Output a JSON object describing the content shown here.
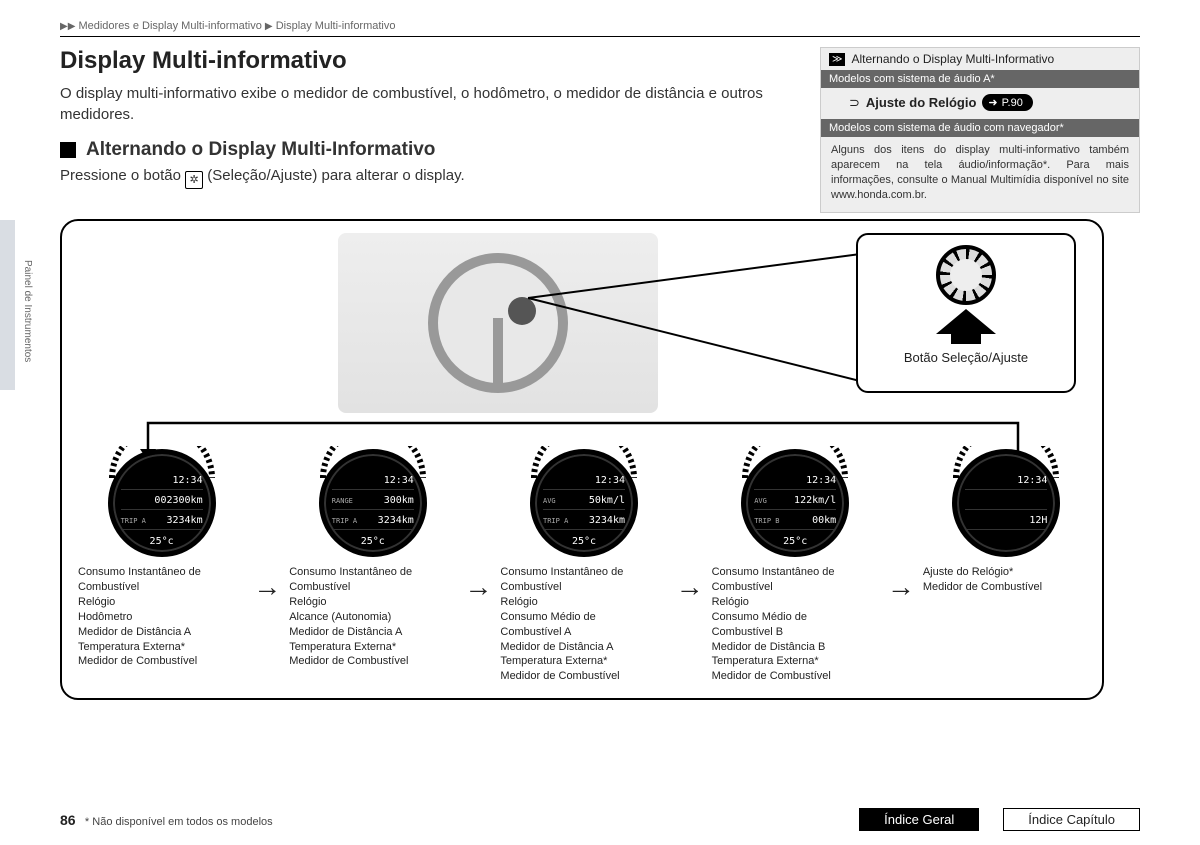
{
  "breadcrumb": {
    "level1": "Medidores e Display Multi-informativo",
    "level2": "Display Multi-informativo"
  },
  "title": "Display Multi-informativo",
  "intro": "O display multi-informativo exibe o medidor de combustível, o hodômetro, o medidor de distância e outros medidores.",
  "subheading": "Alternando o Display Multi-Informativo",
  "instruction_pre": "Pressione o botão ",
  "instruction_post": " (Seleção/Ajuste) para alterar o display.",
  "vertical_tab": "Painel de Instrumentos",
  "sidebar": {
    "header_text": "Alternando o Display Multi-Informativo",
    "bar1": "Modelos com sistema de áudio A*",
    "link_label": "Ajuste do Relógio",
    "link_page": "P.90",
    "bar2": "Modelos com sistema de áudio com navegador*",
    "note": "Alguns dos itens do display multi-informativo também aparecem na tela áudio/informação*. Para mais informações, consulte o Manual Multimídia disponível no site www.honda.com.br."
  },
  "callout_label": "Botão Seleção/Ajuste",
  "gauges": [
    {
      "time": "12:34",
      "row2_left": "",
      "row2_right": "002300km",
      "row3_left": "TRIP A",
      "row3_right": "3234km",
      "temp": "25°c",
      "desc": [
        "Consumo Instantâneo de",
        "Combustível",
        "Relógio",
        "Hodômetro",
        "Medidor de Distância A",
        "Temperatura Externa*",
        "Medidor de Combustível"
      ]
    },
    {
      "time": "12:34",
      "row2_left": "RANGE",
      "row2_right": "300km",
      "row3_left": "TRIP A",
      "row3_right": "3234km",
      "temp": "25°c",
      "desc": [
        "Consumo Instantâneo de",
        "Combustível",
        "Relógio",
        "Alcance (Autonomia)",
        "Medidor de Distância A",
        "Temperatura Externa*",
        "Medidor de Combustível"
      ]
    },
    {
      "time": "12:34",
      "row2_left": "AVG",
      "row2_right": "50km/l",
      "row3_left": "TRIP A",
      "row3_right": "3234km",
      "temp": "25°c",
      "desc": [
        "Consumo Instantâneo de",
        "Combustível",
        "Relógio",
        "Consumo Médio de",
        "Combustível A",
        "Medidor de Distância A",
        "Temperatura Externa*",
        "Medidor de Combustível"
      ]
    },
    {
      "time": "12:34",
      "row2_left": "AVG",
      "row2_right": "122km/l",
      "row3_left": "TRIP B",
      "row3_right": "00km",
      "temp": "25°c",
      "desc": [
        "Consumo Instantâneo de",
        "Combustível",
        "Relógio",
        "Consumo Médio de",
        "Combustível B",
        "Medidor de Distância B",
        "Temperatura Externa*",
        "Medidor de Combustível"
      ]
    },
    {
      "time": "12:34",
      "row2_left": "",
      "row2_right": "",
      "row3_left": "",
      "row3_right": "12H",
      "temp": "",
      "desc": [
        "Ajuste do Relógio*",
        "Medidor de Combustível"
      ]
    }
  ],
  "footer": {
    "page": "86",
    "footnote": "* Não disponível em todos os modelos",
    "btn_index": "Índice Geral",
    "btn_chapter": "Índice Capítulo"
  }
}
